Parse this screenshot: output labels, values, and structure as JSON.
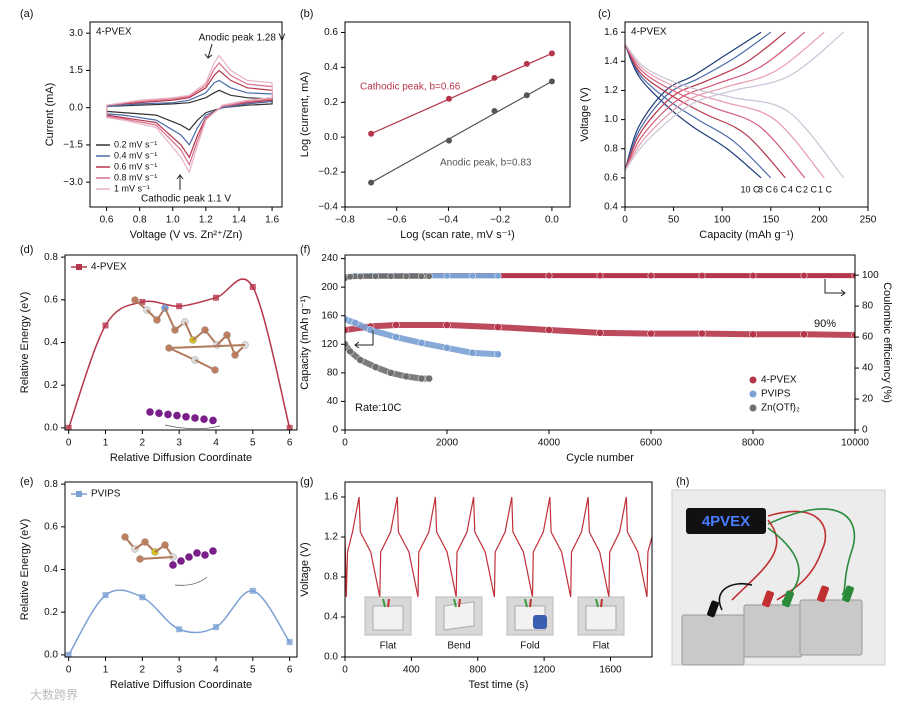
{
  "watermark": "大数跨界",
  "chart_data": [
    {
      "type": "cv",
      "panel_label": "(a)",
      "label": "4-PVEX",
      "xlabel": "Voltage (V vs. Zn²⁺/Zn)",
      "ylabel": "Current (mA)",
      "xlim": [
        0.5,
        1.66
      ],
      "xticks": [
        0.6,
        0.8,
        {
          "value": 1,
          "label": "1.0"
        },
        1.2,
        1.4,
        1.6
      ],
      "ylim": [
        -4,
        3.45
      ],
      "yticks": [
        {
          "value": -3,
          "label": "−3.0"
        },
        {
          "value": -1.5,
          "label": "−1.5"
        },
        {
          "value": 0,
          "label": "0.0"
        },
        1.5,
        {
          "value": 3,
          "label": "3.0"
        }
      ],
      "annotations": [
        "Anodic peak 1.28 V",
        "Cathodic peak 1.1 V"
      ],
      "x": [
        0.6,
        0.8,
        1.0,
        1.1,
        1.2,
        1.25,
        1.28,
        1.35,
        1.45,
        1.6,
        1.6,
        1.45,
        1.3,
        1.2,
        1.15,
        1.1,
        1.05,
        0.9,
        0.7,
        0.6
      ],
      "series": [
        {
          "name": "0.2 mV s⁻¹",
          "color": "#333333",
          "values": [
            0.05,
            0.1,
            0.15,
            0.2,
            0.4,
            0.6,
            0.7,
            0.5,
            0.4,
            0.35,
            0.15,
            0.1,
            0,
            -0.2,
            -0.5,
            -0.9,
            -0.7,
            -0.3,
            -0.2,
            -0.15
          ]
        },
        {
          "name": "0.4 mV s⁻¹",
          "color": "#4a6aa8",
          "values": [
            0.05,
            0.15,
            0.2,
            0.3,
            0.6,
            1.0,
            1.1,
            0.8,
            0.6,
            0.55,
            0.25,
            0.15,
            0,
            -0.3,
            -0.8,
            -1.5,
            -1.1,
            -0.5,
            -0.3,
            -0.25
          ]
        },
        {
          "name": "0.6 mV s⁻¹",
          "color": "#b5364a",
          "values": [
            0.1,
            0.2,
            0.3,
            0.4,
            0.8,
            1.3,
            1.5,
            1.1,
            0.8,
            0.7,
            0.3,
            0.2,
            0.05,
            -0.4,
            -1.1,
            -2.0,
            -1.5,
            -0.6,
            -0.4,
            -0.3
          ]
        },
        {
          "name": "0.8 mV s⁻¹",
          "color": "#d9708c",
          "values": [
            0.1,
            0.25,
            0.35,
            0.45,
            0.9,
            1.55,
            1.8,
            1.3,
            0.95,
            0.85,
            0.35,
            0.25,
            0.05,
            -0.45,
            -1.3,
            -2.3,
            -1.7,
            -0.7,
            -0.45,
            -0.35
          ]
        },
        {
          "name": "1 mV s⁻¹",
          "color": "#e8b4c4",
          "values": [
            0.1,
            0.3,
            0.4,
            0.5,
            1.0,
            1.8,
            2.1,
            1.5,
            1.1,
            1.0,
            0.4,
            0.3,
            0.1,
            -0.5,
            -1.5,
            -2.6,
            -2.0,
            -0.8,
            -0.5,
            -0.4
          ]
        }
      ]
    },
    {
      "type": "scatter",
      "panel_label": "(b)",
      "xlabel": "Log (scan rate, mV s⁻¹)",
      "ylabel": "Log (current, mA)",
      "xlim": [
        -0.8,
        0.07
      ],
      "xticks": [
        {
          "value": -0.8,
          "label": "−0.8"
        },
        {
          "value": -0.6,
          "label": "−0.6"
        },
        {
          "value": -0.4,
          "label": "−0.4"
        },
        {
          "value": -0.2,
          "label": "−0.2"
        },
        {
          "value": 0,
          "label": "0.0"
        }
      ],
      "ylim": [
        -0.4,
        0.66
      ],
      "yticks": [
        {
          "value": -0.4,
          "label": "−0.4"
        },
        {
          "value": -0.2,
          "label": "−0.2"
        },
        {
          "value": 0,
          "label": "0.0"
        },
        0.2,
        0.4,
        0.6
      ],
      "x": [
        -0.699,
        -0.398,
        -0.222,
        -0.097,
        0
      ],
      "series": [
        {
          "name": "Cathodic peak, b=0.66",
          "color": "#b5364a",
          "values": [
            0.02,
            0.22,
            0.34,
            0.42,
            0.48
          ]
        },
        {
          "name": "Anodic peak, b=0.83",
          "color": "#555555",
          "values": [
            -0.26,
            -0.02,
            0.15,
            0.24,
            0.32
          ]
        }
      ]
    },
    {
      "type": "gcd",
      "panel_label": "(c)",
      "label": "4-PVEX",
      "xlabel": "Capacity (mAh g⁻¹)",
      "ylabel": "Voltage (V)",
      "xlim": [
        0,
        250
      ],
      "xticks": [
        0,
        50,
        100,
        150,
        200,
        250
      ],
      "ylim": [
        0.4,
        1.67
      ],
      "yticks": [
        0.4,
        0.6,
        0.8,
        {
          "value": 1,
          "label": "1.0"
        },
        1.2,
        1.4,
        1.6
      ],
      "series": [
        {
          "name": "10 C",
          "color": "#1f3a7a",
          "x": [
            0,
            14,
            42,
            70,
            105,
            140
          ],
          "charge": [
            0.65,
            0.95,
            1.2,
            1.3,
            1.45,
            1.6
          ],
          "discharge": [
            1.52,
            1.3,
            1.1,
            0.95,
            0.8,
            0.6
          ]
        },
        {
          "name": "8 C",
          "color": "#4a6aa8",
          "x": [
            0,
            15,
            45,
            75,
            112,
            150
          ],
          "charge": [
            0.65,
            0.93,
            1.18,
            1.28,
            1.42,
            1.6
          ],
          "discharge": [
            1.52,
            1.31,
            1.13,
            1.0,
            0.85,
            0.6
          ]
        },
        {
          "name": "6 C",
          "color": "#b5364a",
          "x": [
            0,
            16,
            49,
            82,
            124,
            165
          ],
          "charge": [
            0.65,
            0.91,
            1.16,
            1.26,
            1.39,
            1.6
          ],
          "discharge": [
            1.52,
            1.32,
            1.16,
            1.04,
            0.9,
            0.6
          ]
        },
        {
          "name": "4 C",
          "color": "#d45a78",
          "x": [
            0,
            18,
            55,
            92,
            139,
            185
          ],
          "charge": [
            0.65,
            0.89,
            1.14,
            1.24,
            1.36,
            1.6
          ],
          "discharge": [
            1.52,
            1.33,
            1.18,
            1.08,
            0.95,
            0.6
          ]
        },
        {
          "name": "2 C",
          "color": "#e89ab0",
          "x": [
            0,
            20,
            61,
            102,
            154,
            205
          ],
          "charge": [
            0.65,
            0.87,
            1.12,
            1.22,
            1.33,
            1.6
          ],
          "discharge": [
            1.52,
            1.34,
            1.2,
            1.12,
            1.0,
            0.6
          ]
        },
        {
          "name": "1 C",
          "color": "#c9c3d6",
          "x": [
            0,
            22,
            67,
            112,
            169,
            225
          ],
          "charge": [
            0.65,
            0.85,
            1.1,
            1.2,
            1.3,
            1.6
          ],
          "discharge": [
            1.52,
            1.35,
            1.22,
            1.15,
            1.05,
            0.6
          ]
        }
      ]
    },
    {
      "type": "energy",
      "panel_label": "(d)",
      "xlabel": "Relative Diffusion Coordinate",
      "ylabel": "Relative Energy (eV)",
      "xlim": [
        -0.1,
        6.2
      ],
      "xticks": [
        0,
        1,
        2,
        3,
        4,
        5,
        6
      ],
      "ylim": [
        -0.01,
        0.81
      ],
      "yticks": [
        {
          "value": 0,
          "label": "0.0"
        },
        0.2,
        0.4,
        0.6,
        0.8
      ],
      "x": [
        0,
        1,
        2,
        3,
        4,
        5,
        6
      ],
      "series": [
        {
          "name": "4-PVEX",
          "color": "#b5364a",
          "values": [
            0,
            0.48,
            0.59,
            0.57,
            0.61,
            0.66,
            0
          ]
        }
      ]
    },
    {
      "type": "cycling",
      "panel_label": "(f)",
      "xlabel": "Cycle number",
      "ylabel": "Capacity (mAh g⁻¹)",
      "y2label": "Coulombic efficiency (%)",
      "xlim": [
        0,
        10000
      ],
      "xticks": [
        0,
        2000,
        4000,
        6000,
        8000,
        10000
      ],
      "ylim": [
        0,
        245
      ],
      "yticks": [
        0,
        40,
        80,
        120,
        160,
        200,
        240
      ],
      "y2lim": [
        0,
        113
      ],
      "y2ticks": [
        0,
        20,
        40,
        60,
        80,
        100
      ],
      "annotations": [
        "90%",
        "Rate:10C"
      ],
      "series": [
        {
          "name": "4-PVEX",
          "color": "#b5364a",
          "x": [
            0,
            500,
            1000,
            2000,
            3000,
            4000,
            5000,
            6000,
            7000,
            8000,
            9000,
            10000
          ],
          "values": [
            140,
            145,
            147,
            147,
            144,
            140,
            136,
            135,
            135,
            134,
            134,
            133
          ],
          "ce": [
            99,
            99.6,
            99.7,
            99.7,
            99.7,
            99.7,
            99.7,
            99.7,
            99.7,
            99.7,
            99.7,
            99.7
          ]
        },
        {
          "name": "PVIPS",
          "color": "#7aa0d4",
          "x": [
            0,
            200,
            500,
            1000,
            1500,
            2000,
            2500,
            3000
          ],
          "values": [
            155,
            150,
            140,
            130,
            122,
            115,
            108,
            106
          ],
          "ce": [
            99,
            99.5,
            99.6,
            99.6,
            99.6,
            99.6,
            99.6,
            99.6
          ]
        },
        {
          "name": "Zn(OTf)₂",
          "color": "#6e6e6e",
          "x": [
            0,
            100,
            300,
            600,
            900,
            1200,
            1500,
            1650
          ],
          "values": [
            120,
            110,
            98,
            88,
            80,
            75,
            72,
            72
          ],
          "ce": [
            98,
            99,
            99.2,
            99.3,
            99.3,
            99.3,
            99.3,
            99.3
          ]
        }
      ]
    },
    {
      "type": "energy",
      "panel_label": "(e)",
      "xlabel": "Relative Diffusion Coordinate",
      "ylabel": "Relative Energy (eV)",
      "xlim": [
        -0.1,
        6.2
      ],
      "xticks": [
        0,
        1,
        2,
        3,
        4,
        5,
        6
      ],
      "ylim": [
        -0.01,
        0.81
      ],
      "yticks": [
        {
          "value": 0,
          "label": "0.0"
        },
        0.2,
        0.4,
        0.6,
        0.8
      ],
      "x": [
        0,
        1,
        2,
        3,
        4,
        5,
        6
      ],
      "series": [
        {
          "name": "PVIPS",
          "color": "#7aa0d4",
          "values": [
            0,
            0.28,
            0.27,
            0.12,
            0.13,
            0.3,
            0.06
          ]
        }
      ]
    },
    {
      "type": "line",
      "panel_label": "(g)",
      "xlabel": "Test time (s)",
      "ylabel": "Voltage (V)",
      "xlim": [
        0,
        1850
      ],
      "xticks": [
        0,
        400,
        800,
        1200,
        1600
      ],
      "ylim": [
        0,
        1.75
      ],
      "yticks": [
        {
          "value": 0,
          "label": "0.0"
        },
        0.4,
        0.8,
        1.2,
        1.6
      ],
      "photo_labels": [
        "Flat",
        "Bend",
        "Fold",
        "Flat"
      ],
      "color": "#c0303a",
      "x": [
        0,
        8,
        15,
        45,
        85,
        92,
        155,
        210,
        215,
        275,
        315,
        322,
        385,
        440,
        445,
        505,
        545,
        552,
        615,
        670,
        675,
        735,
        775,
        782,
        845,
        900,
        905,
        965,
        1005,
        1012,
        1075,
        1130,
        1135,
        1195,
        1235,
        1242,
        1305,
        1360,
        1365,
        1425,
        1465,
        1472,
        1535,
        1590,
        1595,
        1655,
        1695,
        1702,
        1765,
        1820,
        1825,
        1850
      ],
      "values": [
        1.2,
        0.6,
        1.05,
        1.25,
        1.6,
        1.25,
        1.05,
        0.6,
        1.05,
        1.25,
        1.6,
        1.25,
        1.05,
        0.6,
        1.05,
        1.25,
        1.6,
        1.25,
        1.05,
        0.6,
        1.05,
        1.25,
        1.6,
        1.25,
        1.05,
        0.6,
        1.05,
        1.25,
        1.6,
        1.25,
        1.05,
        0.6,
        1.05,
        1.25,
        1.6,
        1.25,
        1.05,
        0.6,
        1.05,
        1.25,
        1.6,
        1.25,
        1.05,
        0.6,
        1.05,
        1.25,
        1.6,
        1.25,
        1.05,
        0.6,
        1.05,
        1.2
      ]
    },
    {
      "type": "photo",
      "panel_label": "(h)",
      "display_text": "4PVEX"
    }
  ]
}
